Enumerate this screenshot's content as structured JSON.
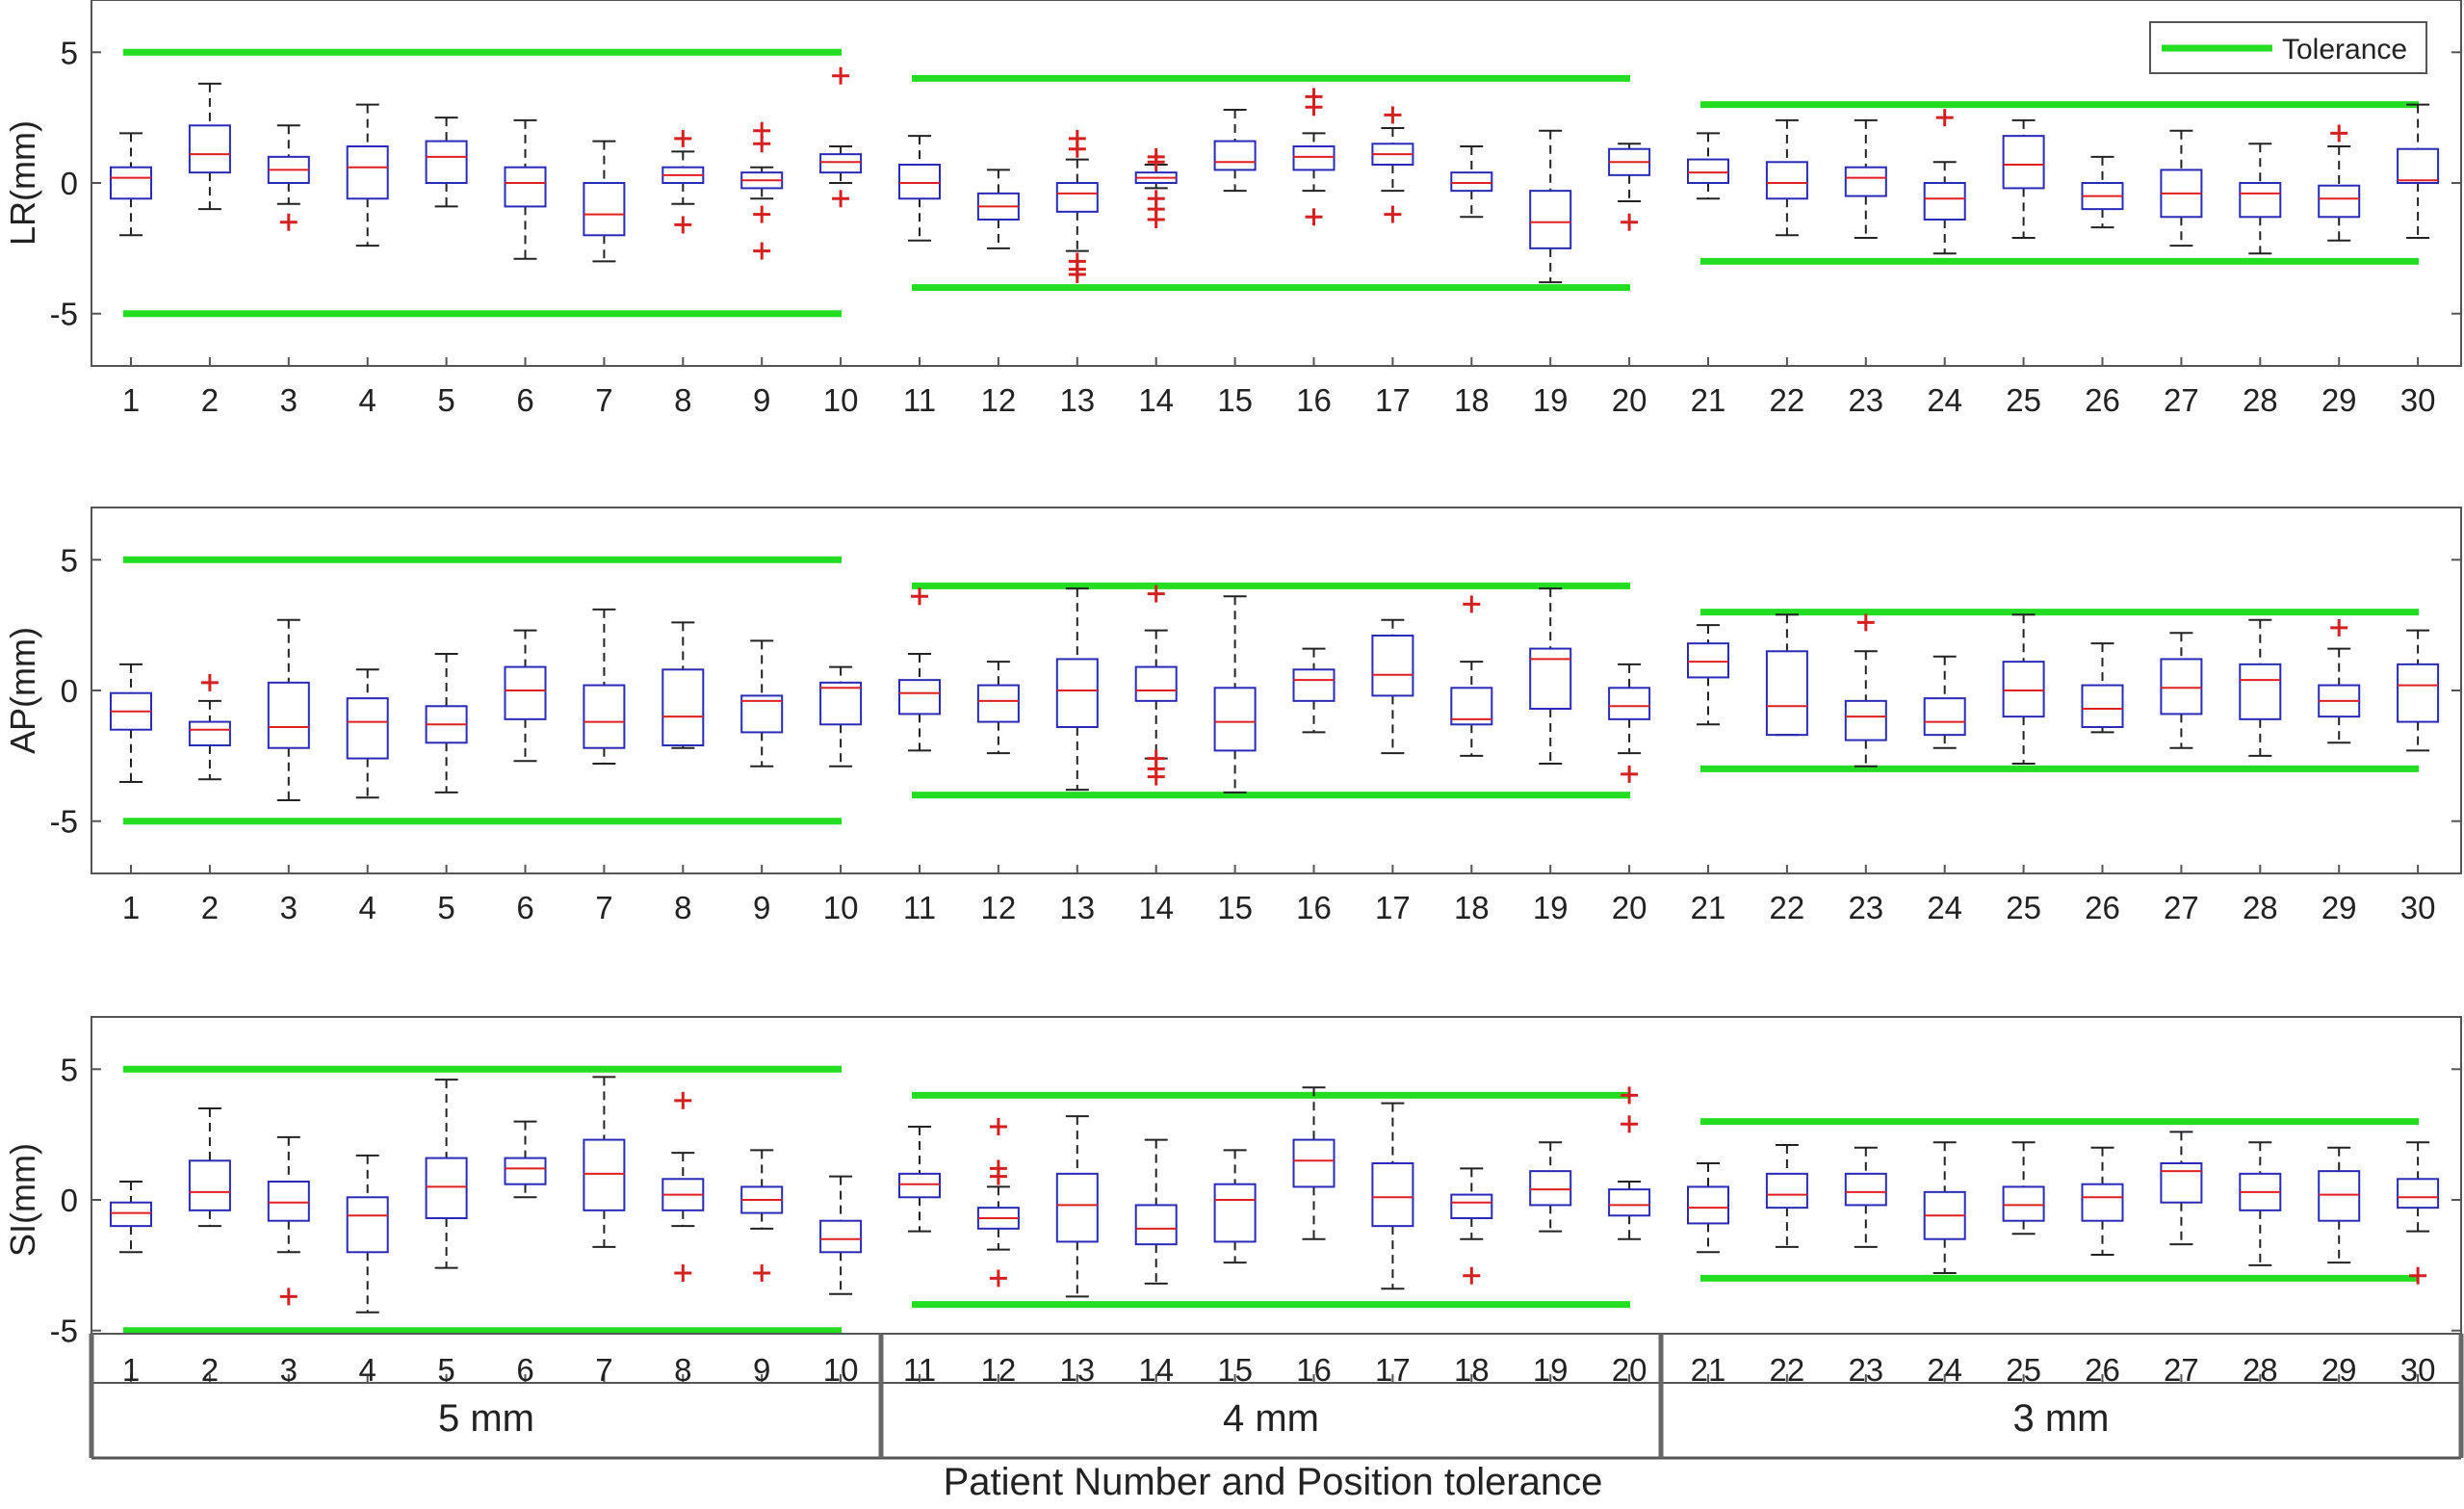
{
  "colors": {
    "tolerance": "#22dd22",
    "box": "#2a2ab8",
    "median": "#e02020",
    "outlier": "#d42020",
    "whisker": "#222222",
    "frame": "#555555"
  },
  "chart_data": {
    "type": "box",
    "title": "",
    "xlabel": "Patient Number and Position tolerance",
    "legend": {
      "entries": [
        "Tolerance"
      ],
      "placement": "top-right"
    },
    "categories": [
      "1",
      "2",
      "3",
      "4",
      "5",
      "6",
      "7",
      "8",
      "9",
      "10",
      "11",
      "12",
      "13",
      "14",
      "15",
      "16",
      "17",
      "18",
      "19",
      "20",
      "21",
      "22",
      "23",
      "24",
      "25",
      "26",
      "27",
      "28",
      "29",
      "30"
    ],
    "groups": [
      {
        "label": "5 mm",
        "patients": [
          1,
          10
        ],
        "tolerance": 5
      },
      {
        "label": "4 mm",
        "patients": [
          11,
          20
        ],
        "tolerance": 4
      },
      {
        "label": "3 mm",
        "patients": [
          21,
          30
        ],
        "tolerance": 3
      }
    ],
    "panels": [
      {
        "ylabel": "LR(mm)",
        "ylim": [
          -7,
          7
        ],
        "yticks": [
          -5,
          0,
          5
        ],
        "boxes": [
          {
            "q1": -0.6,
            "median": 0.2,
            "q3": 0.6,
            "wlo": -2.0,
            "whi": 1.9,
            "outliers": []
          },
          {
            "q1": 0.4,
            "median": 1.1,
            "q3": 2.2,
            "wlo": -1.0,
            "whi": 3.8,
            "outliers": []
          },
          {
            "q1": 0.0,
            "median": 0.5,
            "q3": 1.0,
            "wlo": -0.8,
            "whi": 2.2,
            "outliers": [
              -1.5
            ]
          },
          {
            "q1": -0.6,
            "median": 0.6,
            "q3": 1.4,
            "wlo": -2.4,
            "whi": 3.0,
            "outliers": []
          },
          {
            "q1": 0.0,
            "median": 1.0,
            "q3": 1.6,
            "wlo": -0.9,
            "whi": 2.5,
            "outliers": []
          },
          {
            "q1": -0.9,
            "median": 0.0,
            "q3": 0.6,
            "wlo": -2.9,
            "whi": 2.4,
            "outliers": []
          },
          {
            "q1": -2.0,
            "median": -1.2,
            "q3": 0.0,
            "wlo": -3.0,
            "whi": 1.6,
            "outliers": []
          },
          {
            "q1": 0.0,
            "median": 0.3,
            "q3": 0.6,
            "wlo": -0.8,
            "whi": 1.2,
            "outliers": [
              1.7,
              -1.6
            ]
          },
          {
            "q1": -0.2,
            "median": 0.1,
            "q3": 0.4,
            "wlo": -0.6,
            "whi": 0.6,
            "outliers": [
              2.0,
              1.5,
              -1.2,
              -2.6
            ]
          },
          {
            "q1": 0.4,
            "median": 0.8,
            "q3": 1.1,
            "wlo": 0.0,
            "whi": 1.4,
            "outliers": [
              4.1,
              -0.6
            ]
          },
          {
            "q1": -0.6,
            "median": 0.0,
            "q3": 0.7,
            "wlo": -2.2,
            "whi": 1.8,
            "outliers": []
          },
          {
            "q1": -1.4,
            "median": -0.9,
            "q3": -0.4,
            "wlo": -2.5,
            "whi": 0.5,
            "outliers": []
          },
          {
            "q1": -1.1,
            "median": -0.4,
            "q3": 0.0,
            "wlo": -2.6,
            "whi": 0.9,
            "outliers": [
              1.7,
              1.3,
              -3.0,
              -3.3,
              -3.5
            ]
          },
          {
            "q1": 0.0,
            "median": 0.2,
            "q3": 0.4,
            "wlo": -0.2,
            "whi": 0.7,
            "outliers": [
              1.0,
              0.8,
              -0.6,
              -1.0,
              -1.4
            ]
          },
          {
            "q1": 0.5,
            "median": 0.8,
            "q3": 1.6,
            "wlo": -0.3,
            "whi": 2.8,
            "outliers": []
          },
          {
            "q1": 0.5,
            "median": 1.0,
            "q3": 1.4,
            "wlo": -0.3,
            "whi": 1.9,
            "outliers": [
              3.3,
              2.9,
              -1.3
            ]
          },
          {
            "q1": 0.7,
            "median": 1.1,
            "q3": 1.5,
            "wlo": -0.3,
            "whi": 2.1,
            "outliers": [
              2.6,
              -1.2
            ]
          },
          {
            "q1": -0.3,
            "median": 0.0,
            "q3": 0.4,
            "wlo": -1.3,
            "whi": 1.4,
            "outliers": []
          },
          {
            "q1": -2.5,
            "median": -1.5,
            "q3": -0.3,
            "wlo": -3.8,
            "whi": 2.0,
            "outliers": []
          },
          {
            "q1": 0.3,
            "median": 0.8,
            "q3": 1.3,
            "wlo": -0.7,
            "whi": 1.5,
            "outliers": [
              -1.5
            ]
          },
          {
            "q1": 0.0,
            "median": 0.4,
            "q3": 0.9,
            "wlo": -0.6,
            "whi": 1.9,
            "outliers": []
          },
          {
            "q1": -0.6,
            "median": 0.0,
            "q3": 0.8,
            "wlo": -2.0,
            "whi": 2.4,
            "outliers": []
          },
          {
            "q1": -0.5,
            "median": 0.2,
            "q3": 0.6,
            "wlo": -2.1,
            "whi": 2.4,
            "outliers": []
          },
          {
            "q1": -1.4,
            "median": -0.6,
            "q3": 0.0,
            "wlo": -2.7,
            "whi": 0.8,
            "outliers": [
              2.5
            ]
          },
          {
            "q1": -0.2,
            "median": 0.7,
            "q3": 1.8,
            "wlo": -2.1,
            "whi": 2.4,
            "outliers": []
          },
          {
            "q1": -1.0,
            "median": -0.5,
            "q3": 0.0,
            "wlo": -1.7,
            "whi": 1.0,
            "outliers": []
          },
          {
            "q1": -1.3,
            "median": -0.4,
            "q3": 0.5,
            "wlo": -2.4,
            "whi": 2.0,
            "outliers": []
          },
          {
            "q1": -1.3,
            "median": -0.4,
            "q3": 0.0,
            "wlo": -2.7,
            "whi": 1.5,
            "outliers": []
          },
          {
            "q1": -1.3,
            "median": -0.6,
            "q3": -0.1,
            "wlo": -2.2,
            "whi": 1.4,
            "outliers": [
              1.9
            ]
          },
          {
            "q1": 0.0,
            "median": 0.1,
            "q3": 1.3,
            "wlo": -2.1,
            "whi": 3.0,
            "outliers": []
          }
        ]
      },
      {
        "ylabel": "AP(mm)",
        "ylim": [
          -7,
          7
        ],
        "yticks": [
          -5,
          0,
          5
        ],
        "boxes": [
          {
            "q1": -1.5,
            "median": -0.8,
            "q3": -0.1,
            "wlo": -3.5,
            "whi": 1.0,
            "outliers": []
          },
          {
            "q1": -2.1,
            "median": -1.5,
            "q3": -1.2,
            "wlo": -3.4,
            "whi": -0.4,
            "outliers": [
              0.3
            ]
          },
          {
            "q1": -2.2,
            "median": -1.4,
            "q3": 0.3,
            "wlo": -4.2,
            "whi": 2.7,
            "outliers": []
          },
          {
            "q1": -2.6,
            "median": -1.2,
            "q3": -0.3,
            "wlo": -4.1,
            "whi": 0.8,
            "outliers": []
          },
          {
            "q1": -2.0,
            "median": -1.3,
            "q3": -0.6,
            "wlo": -3.9,
            "whi": 1.4,
            "outliers": []
          },
          {
            "q1": -1.1,
            "median": 0.0,
            "q3": 0.9,
            "wlo": -2.7,
            "whi": 2.3,
            "outliers": []
          },
          {
            "q1": -2.2,
            "median": -1.2,
            "q3": 0.2,
            "wlo": -2.8,
            "whi": 3.1,
            "outliers": []
          },
          {
            "q1": -2.1,
            "median": -1.0,
            "q3": 0.8,
            "wlo": -2.2,
            "whi": 2.6,
            "outliers": []
          },
          {
            "q1": -1.6,
            "median": -0.4,
            "q3": -0.2,
            "wlo": -2.9,
            "whi": 1.9,
            "outliers": []
          },
          {
            "q1": -1.3,
            "median": 0.1,
            "q3": 0.3,
            "wlo": -2.9,
            "whi": 0.9,
            "outliers": []
          },
          {
            "q1": -0.9,
            "median": -0.1,
            "q3": 0.4,
            "wlo": -2.3,
            "whi": 1.4,
            "outliers": [
              3.6
            ]
          },
          {
            "q1": -1.2,
            "median": -0.4,
            "q3": 0.2,
            "wlo": -2.4,
            "whi": 1.1,
            "outliers": []
          },
          {
            "q1": -1.4,
            "median": 0.0,
            "q3": 1.2,
            "wlo": -3.8,
            "whi": 3.9,
            "outliers": []
          },
          {
            "q1": -0.4,
            "median": 0.0,
            "q3": 0.9,
            "wlo": -2.6,
            "whi": 2.3,
            "outliers": [
              3.7,
              -2.6,
              -3.0,
              -3.3
            ]
          },
          {
            "q1": -2.3,
            "median": -1.2,
            "q3": 0.1,
            "wlo": -3.9,
            "whi": 3.6,
            "outliers": []
          },
          {
            "q1": -0.4,
            "median": 0.4,
            "q3": 0.8,
            "wlo": -1.6,
            "whi": 1.6,
            "outliers": []
          },
          {
            "q1": -0.2,
            "median": 0.6,
            "q3": 2.1,
            "wlo": -2.4,
            "whi": 2.7,
            "outliers": []
          },
          {
            "q1": -1.3,
            "median": -1.1,
            "q3": 0.1,
            "wlo": -2.5,
            "whi": 1.1,
            "outliers": [
              3.3
            ]
          },
          {
            "q1": -0.7,
            "median": 1.2,
            "q3": 1.6,
            "wlo": -2.8,
            "whi": 3.9,
            "outliers": []
          },
          {
            "q1": -1.1,
            "median": -0.6,
            "q3": 0.1,
            "wlo": -2.4,
            "whi": 1.0,
            "outliers": [
              -3.2
            ]
          },
          {
            "q1": 0.5,
            "median": 1.1,
            "q3": 1.8,
            "wlo": -1.3,
            "whi": 2.5,
            "outliers": []
          },
          {
            "q1": -1.7,
            "median": -0.6,
            "q3": 1.5,
            "wlo": -1.7,
            "whi": 2.9,
            "outliers": []
          },
          {
            "q1": -1.9,
            "median": -1.0,
            "q3": -0.4,
            "wlo": -2.9,
            "whi": 1.5,
            "outliers": [
              2.6
            ]
          },
          {
            "q1": -1.7,
            "median": -1.2,
            "q3": -0.3,
            "wlo": -2.2,
            "whi": 1.3,
            "outliers": []
          },
          {
            "q1": -1.0,
            "median": 0.0,
            "q3": 1.1,
            "wlo": -2.8,
            "whi": 2.9,
            "outliers": []
          },
          {
            "q1": -1.4,
            "median": -0.7,
            "q3": 0.2,
            "wlo": -1.6,
            "whi": 1.8,
            "outliers": []
          },
          {
            "q1": -0.9,
            "median": 0.1,
            "q3": 1.2,
            "wlo": -2.2,
            "whi": 2.2,
            "outliers": []
          },
          {
            "q1": -1.1,
            "median": 0.4,
            "q3": 1.0,
            "wlo": -2.5,
            "whi": 2.7,
            "outliers": []
          },
          {
            "q1": -1.0,
            "median": -0.4,
            "q3": 0.2,
            "wlo": -2.0,
            "whi": 1.6,
            "outliers": [
              2.4
            ]
          },
          {
            "q1": -1.2,
            "median": 0.2,
            "q3": 1.0,
            "wlo": -2.3,
            "whi": 2.3,
            "outliers": []
          }
        ]
      },
      {
        "ylabel": "SI(mm)",
        "ylim": [
          -7,
          7
        ],
        "yticks": [
          -5,
          0,
          5
        ],
        "boxes": [
          {
            "q1": -1.0,
            "median": -0.5,
            "q3": -0.1,
            "wlo": -2.0,
            "whi": 0.7,
            "outliers": []
          },
          {
            "q1": -0.4,
            "median": 0.3,
            "q3": 1.5,
            "wlo": -1.0,
            "whi": 3.5,
            "outliers": []
          },
          {
            "q1": -0.8,
            "median": -0.1,
            "q3": 0.7,
            "wlo": -2.0,
            "whi": 2.4,
            "outliers": [
              -3.7
            ]
          },
          {
            "q1": -2.0,
            "median": -0.6,
            "q3": 0.1,
            "wlo": -4.3,
            "whi": 1.7,
            "outliers": []
          },
          {
            "q1": -0.7,
            "median": 0.5,
            "q3": 1.6,
            "wlo": -2.6,
            "whi": 4.6,
            "outliers": []
          },
          {
            "q1": 0.6,
            "median": 1.2,
            "q3": 1.6,
            "wlo": 0.1,
            "whi": 3.0,
            "outliers": []
          },
          {
            "q1": -0.4,
            "median": 1.0,
            "q3": 2.3,
            "wlo": -1.8,
            "whi": 4.7,
            "outliers": []
          },
          {
            "q1": -0.4,
            "median": 0.2,
            "q3": 0.8,
            "wlo": -1.0,
            "whi": 1.8,
            "outliers": [
              3.8,
              -2.8
            ]
          },
          {
            "q1": -0.5,
            "median": 0.0,
            "q3": 0.5,
            "wlo": -1.1,
            "whi": 1.9,
            "outliers": [
              -2.8
            ]
          },
          {
            "q1": -2.0,
            "median": -1.5,
            "q3": -0.8,
            "wlo": -3.6,
            "whi": 0.9,
            "outliers": []
          },
          {
            "q1": 0.1,
            "median": 0.6,
            "q3": 1.0,
            "wlo": -1.2,
            "whi": 2.8,
            "outliers": []
          },
          {
            "q1": -1.1,
            "median": -0.7,
            "q3": -0.3,
            "wlo": -1.9,
            "whi": 0.5,
            "outliers": [
              2.8,
              1.2,
              0.9,
              -3.0
            ]
          },
          {
            "q1": -1.6,
            "median": -0.2,
            "q3": 1.0,
            "wlo": -3.7,
            "whi": 3.2,
            "outliers": []
          },
          {
            "q1": -1.7,
            "median": -1.1,
            "q3": -0.2,
            "wlo": -3.2,
            "whi": 2.3,
            "outliers": []
          },
          {
            "q1": -1.6,
            "median": 0.0,
            "q3": 0.6,
            "wlo": -2.4,
            "whi": 1.9,
            "outliers": []
          },
          {
            "q1": 0.5,
            "median": 1.5,
            "q3": 2.3,
            "wlo": -1.5,
            "whi": 4.3,
            "outliers": []
          },
          {
            "q1": -1.0,
            "median": 0.1,
            "q3": 1.4,
            "wlo": -3.4,
            "whi": 3.7,
            "outliers": []
          },
          {
            "q1": -0.7,
            "median": -0.1,
            "q3": 0.2,
            "wlo": -1.5,
            "whi": 1.2,
            "outliers": [
              -2.9
            ]
          },
          {
            "q1": -0.2,
            "median": 0.4,
            "q3": 1.1,
            "wlo": -1.2,
            "whi": 2.2,
            "outliers": []
          },
          {
            "q1": -0.6,
            "median": -0.2,
            "q3": 0.4,
            "wlo": -1.5,
            "whi": 0.7,
            "outliers": [
              4.0,
              2.9
            ]
          },
          {
            "q1": -0.9,
            "median": -0.3,
            "q3": 0.5,
            "wlo": -2.0,
            "whi": 1.4,
            "outliers": []
          },
          {
            "q1": -0.3,
            "median": 0.2,
            "q3": 1.0,
            "wlo": -1.8,
            "whi": 2.1,
            "outliers": []
          },
          {
            "q1": -0.2,
            "median": 0.3,
            "q3": 1.0,
            "wlo": -1.8,
            "whi": 2.0,
            "outliers": []
          },
          {
            "q1": -1.5,
            "median": -0.6,
            "q3": 0.3,
            "wlo": -2.8,
            "whi": 2.2,
            "outliers": []
          },
          {
            "q1": -0.8,
            "median": -0.2,
            "q3": 0.5,
            "wlo": -1.3,
            "whi": 2.2,
            "outliers": []
          },
          {
            "q1": -0.8,
            "median": 0.1,
            "q3": 0.6,
            "wlo": -2.1,
            "whi": 2.0,
            "outliers": []
          },
          {
            "q1": -0.1,
            "median": 1.1,
            "q3": 1.4,
            "wlo": -1.7,
            "whi": 2.6,
            "outliers": []
          },
          {
            "q1": -0.4,
            "median": 0.3,
            "q3": 1.0,
            "wlo": -2.5,
            "whi": 2.2,
            "outliers": []
          },
          {
            "q1": -0.8,
            "median": 0.2,
            "q3": 1.1,
            "wlo": -2.4,
            "whi": 2.0,
            "outliers": []
          },
          {
            "q1": -0.3,
            "median": 0.1,
            "q3": 0.8,
            "wlo": -1.2,
            "whi": 2.2,
            "outliers": [
              -2.9
            ]
          }
        ]
      }
    ]
  }
}
